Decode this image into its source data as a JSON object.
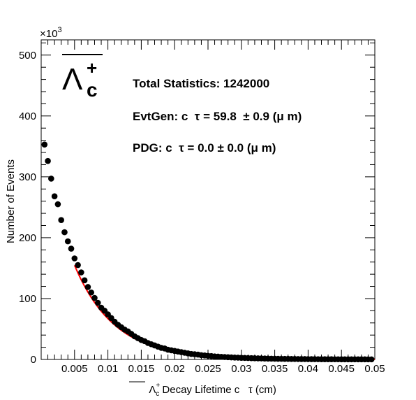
{
  "chart_data": {
    "type": "scatter",
    "xlabel_particle": "Λ",
    "xlabel_sub": "c",
    "xlabel_sup": "+",
    "xlabel_rest": " Decay Lifetime c   τ (cm)",
    "ylabel": "Number of Events",
    "y_multiplier": "×10",
    "y_multiplier_exp": "3",
    "xlim": [
      0,
      0.05
    ],
    "ylim": [
      0,
      525
    ],
    "x_ticks": [
      {
        "value": 0.005,
        "label": "0.005"
      },
      {
        "value": 0.01,
        "label": "0.01"
      },
      {
        "value": 0.015,
        "label": "0.015"
      },
      {
        "value": 0.02,
        "label": "0.02"
      },
      {
        "value": 0.025,
        "label": "0.025"
      },
      {
        "value": 0.03,
        "label": "0.03"
      },
      {
        "value": 0.035,
        "label": "0.035"
      },
      {
        "value": 0.04,
        "label": "0.04"
      },
      {
        "value": 0.045,
        "label": "0.045"
      },
      {
        "value": 0.05,
        "label": "0.05"
      }
    ],
    "y_ticks": [
      {
        "value": 0,
        "label": "0"
      },
      {
        "value": 100,
        "label": "100"
      },
      {
        "value": 200,
        "label": "200"
      },
      {
        "value": 300,
        "label": "300"
      },
      {
        "value": 400,
        "label": "400"
      },
      {
        "value": 500,
        "label": "500"
      }
    ],
    "particle_label": {
      "base": "Λ",
      "sub": "c",
      "sup": "+"
    },
    "annotations": [
      "Total Statistics: 1242000",
      "EvtGen: c  τ = 59.8  ± 0.9 (μ m)",
      "PDG: c  τ = 0.0 ± 0.0 (μ m)"
    ],
    "series": [
      {
        "style": "markers",
        "color": "#000000",
        "points": [
          [
            0.0005,
            353
          ],
          [
            0.001,
            326
          ],
          [
            0.0015,
            297
          ],
          [
            0.002,
            268
          ],
          [
            0.0025,
            255
          ],
          [
            0.003,
            229
          ],
          [
            0.0035,
            209
          ],
          [
            0.004,
            194
          ],
          [
            0.0045,
            182
          ],
          [
            0.005,
            166
          ],
          [
            0.0055,
            155
          ],
          [
            0.006,
            143
          ],
          [
            0.0065,
            130
          ],
          [
            0.007,
            119
          ],
          [
            0.0075,
            110
          ],
          [
            0.008,
            101
          ],
          [
            0.0085,
            93
          ],
          [
            0.009,
            85
          ],
          [
            0.0095,
            80
          ],
          [
            0.01,
            74
          ],
          [
            0.0105,
            68
          ],
          [
            0.011,
            62
          ],
          [
            0.0115,
            57
          ],
          [
            0.012,
            53
          ],
          [
            0.0125,
            49
          ],
          [
            0.013,
            46
          ],
          [
            0.0135,
            42
          ],
          [
            0.014,
            38
          ],
          [
            0.0145,
            35
          ],
          [
            0.015,
            32
          ],
          [
            0.0155,
            30
          ],
          [
            0.016,
            27
          ],
          [
            0.0165,
            25
          ],
          [
            0.017,
            23
          ],
          [
            0.0175,
            21
          ],
          [
            0.018,
            19
          ],
          [
            0.0185,
            18
          ],
          [
            0.019,
            16
          ],
          [
            0.0195,
            15
          ],
          [
            0.02,
            14
          ],
          [
            0.0205,
            13
          ],
          [
            0.021,
            12
          ],
          [
            0.0215,
            11
          ],
          [
            0.022,
            10
          ],
          [
            0.0225,
            9
          ],
          [
            0.023,
            8.5
          ],
          [
            0.0235,
            8
          ],
          [
            0.024,
            7
          ],
          [
            0.0245,
            6.5
          ],
          [
            0.025,
            6
          ],
          [
            0.0255,
            5.5
          ],
          [
            0.026,
            5
          ],
          [
            0.0265,
            4.7
          ],
          [
            0.027,
            4.3
          ],
          [
            0.0275,
            4
          ],
          [
            0.028,
            3.7
          ],
          [
            0.0285,
            3.4
          ],
          [
            0.029,
            3.1
          ],
          [
            0.0295,
            2.9
          ],
          [
            0.03,
            2.7
          ],
          [
            0.0305,
            2.5
          ],
          [
            0.031,
            2.3
          ],
          [
            0.0315,
            2.1
          ],
          [
            0.032,
            1.9
          ],
          [
            0.0325,
            1.8
          ],
          [
            0.033,
            1.7
          ],
          [
            0.0335,
            1.5
          ],
          [
            0.034,
            1.4
          ],
          [
            0.0345,
            1.3
          ],
          [
            0.035,
            1.2
          ],
          [
            0.0355,
            1.1
          ],
          [
            0.036,
            1.0
          ],
          [
            0.0365,
            0.95
          ],
          [
            0.037,
            0.9
          ],
          [
            0.0375,
            0.8
          ],
          [
            0.038,
            0.75
          ],
          [
            0.0385,
            0.7
          ],
          [
            0.039,
            0.65
          ],
          [
            0.0395,
            0.6
          ],
          [
            0.04,
            0.55
          ],
          [
            0.0405,
            0.5
          ],
          [
            0.041,
            0.47
          ],
          [
            0.0415,
            0.44
          ],
          [
            0.042,
            0.4
          ],
          [
            0.0425,
            0.37
          ],
          [
            0.043,
            0.34
          ],
          [
            0.0435,
            0.32
          ],
          [
            0.044,
            0.3
          ],
          [
            0.0445,
            0.28
          ],
          [
            0.045,
            0.26
          ],
          [
            0.0455,
            0.24
          ],
          [
            0.046,
            0.22
          ],
          [
            0.0465,
            0.2
          ],
          [
            0.047,
            0.19
          ],
          [
            0.0475,
            0.18
          ],
          [
            0.048,
            0.17
          ],
          [
            0.0485,
            0.16
          ],
          [
            0.049,
            0.15
          ],
          [
            0.0495,
            0.14
          ]
        ]
      },
      {
        "style": "line",
        "color": "#ff0000",
        "fit": {
          "amplitude": 357,
          "decay_length": 0.00598,
          "x_start": 0.005,
          "x_end": 0.05
        }
      }
    ],
    "grid": false,
    "legend": "none"
  }
}
